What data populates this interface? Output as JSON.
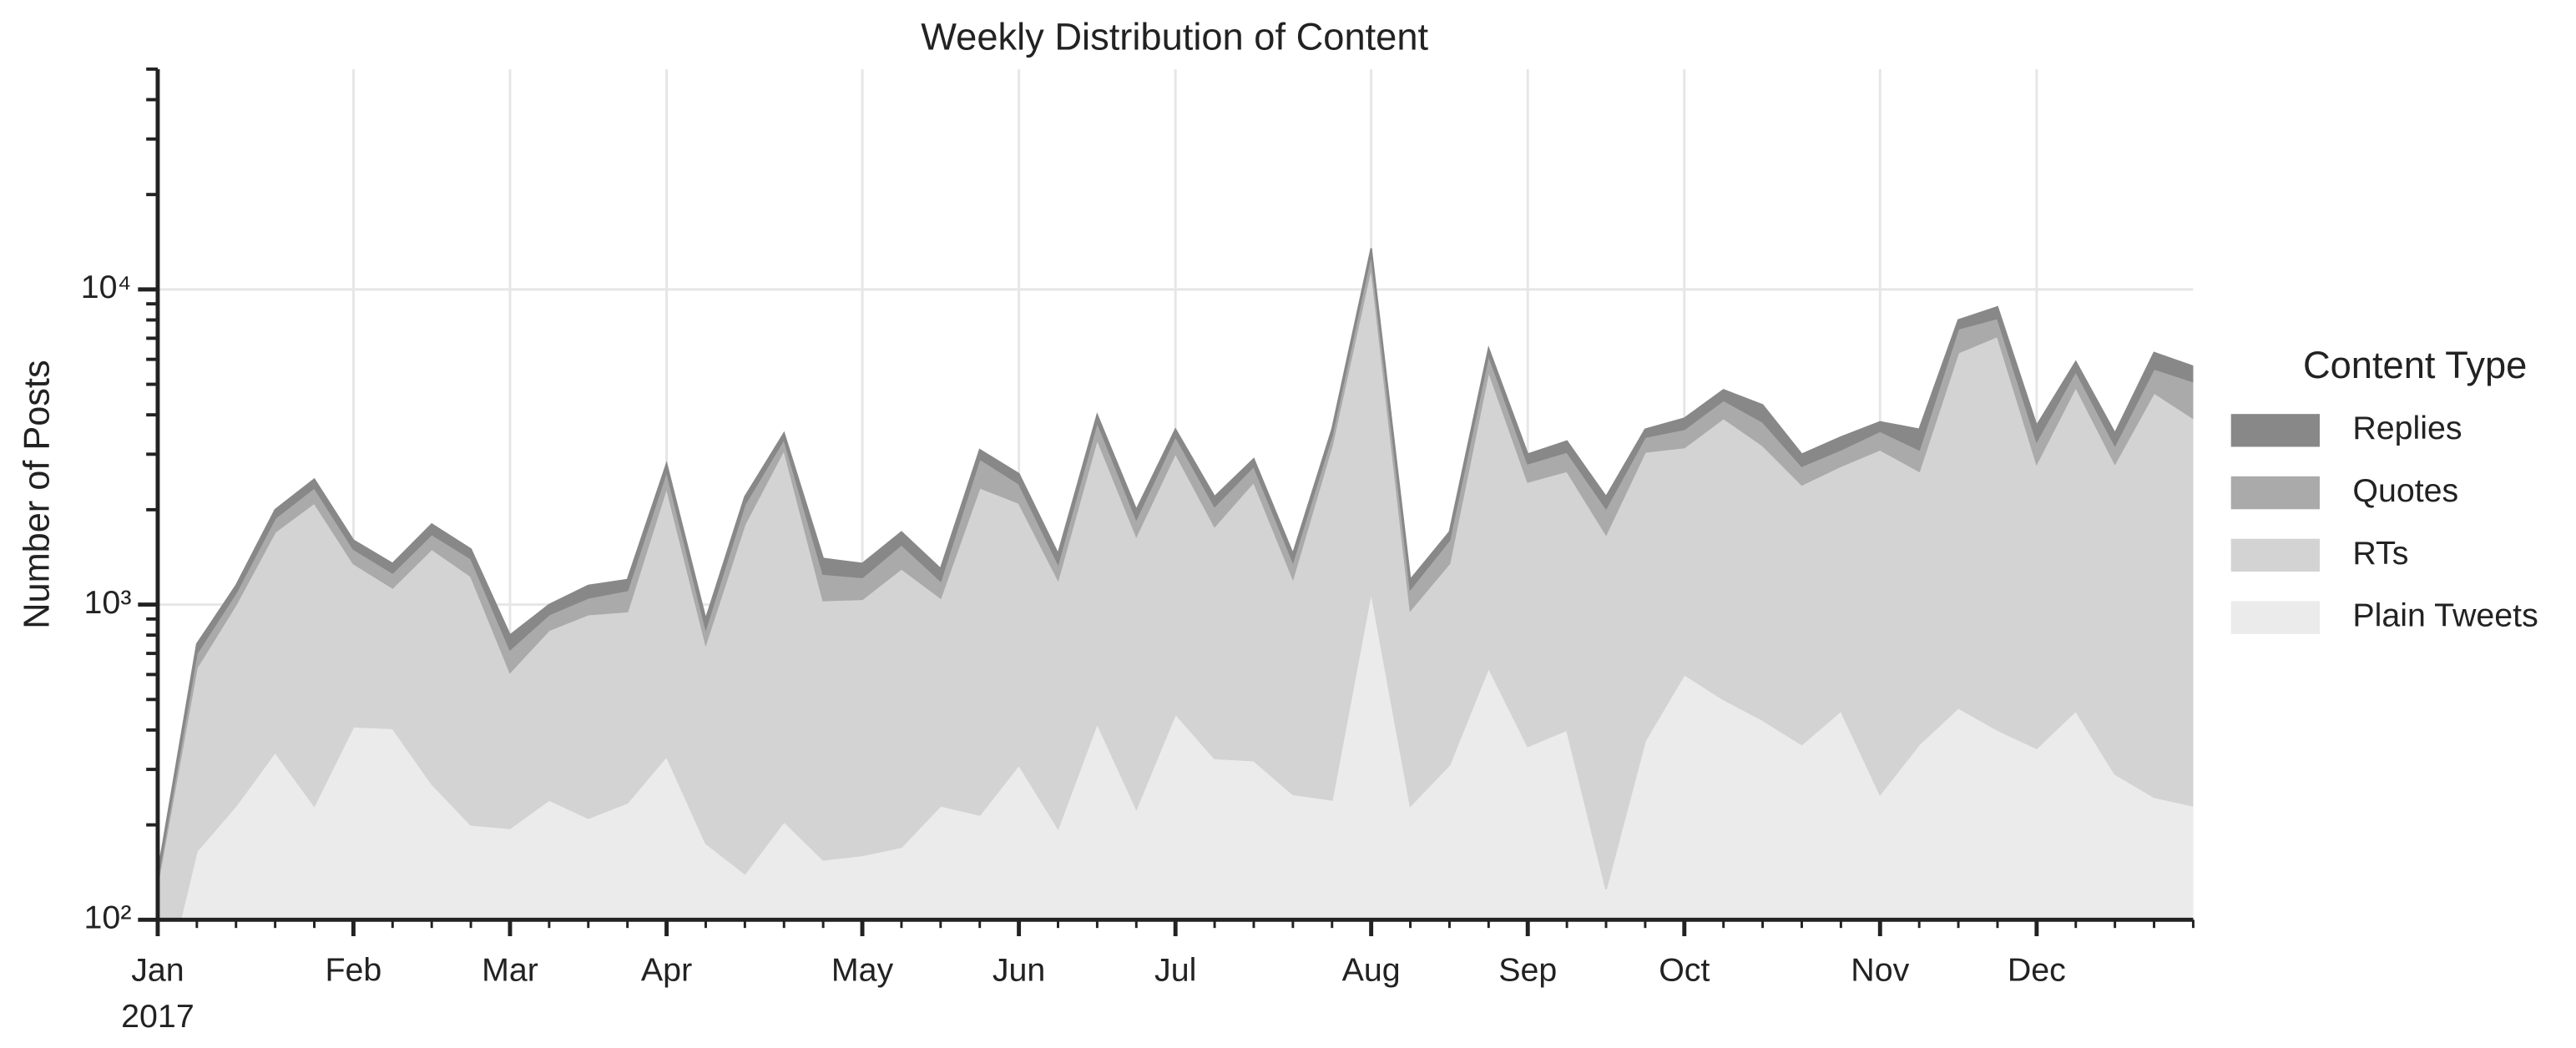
{
  "chart_data": {
    "type": "stacked_area",
    "title": "Weekly Distribution of Content",
    "ylabel": "Number of Posts",
    "legend_title": "Content Type",
    "legend": "right",
    "log_scale_y": true,
    "grid": true,
    "x": [
      0,
      1,
      2,
      3,
      4,
      5,
      6,
      7,
      8,
      9,
      10,
      11,
      12,
      13,
      14,
      15,
      16,
      17,
      18,
      19,
      20,
      21,
      22,
      23,
      24,
      25,
      26,
      27,
      28,
      29,
      30,
      31,
      32,
      33,
      34,
      35,
      36,
      37,
      38,
      39,
      40,
      41,
      42,
      43,
      44,
      45,
      46,
      47,
      48,
      49,
      50,
      51,
      52
    ],
    "xlim": [
      0,
      52
    ],
    "xticks": [
      {
        "value": 0,
        "label": "Jan"
      },
      {
        "value": 5,
        "label": "Feb"
      },
      {
        "value": 9,
        "label": "Mar"
      },
      {
        "value": 13,
        "label": "Apr"
      },
      {
        "value": 18,
        "label": "May"
      },
      {
        "value": 22,
        "label": "Jun"
      },
      {
        "value": 26,
        "label": "Jul"
      },
      {
        "value": 31,
        "label": "Aug"
      },
      {
        "value": 35,
        "label": "Sep"
      },
      {
        "value": 39,
        "label": "Oct"
      },
      {
        "value": 44,
        "label": "Nov"
      },
      {
        "value": 48,
        "label": "Dec"
      }
    ],
    "x_sublabel": "2017",
    "ylim": [
      100,
      50000
    ],
    "yticks": [
      {
        "value": 100,
        "label": "10²"
      },
      {
        "value": 1000,
        "label": "10³"
      },
      {
        "value": 10000,
        "label": "10⁴"
      }
    ],
    "yminorticks": [
      200,
      300,
      400,
      500,
      600,
      700,
      800,
      900,
      2000,
      3000,
      4000,
      5000,
      6000,
      7000,
      8000,
      9000,
      20000,
      30000,
      40000,
      50000
    ],
    "series": [
      {
        "name": "Plain Tweets",
        "color": "#ebebeb",
        "values": [
          50,
          165,
          230,
          340,
          230,
          410,
          405,
          270,
          200,
          195,
          240,
          210,
          235,
          330,
          175,
          140,
          205,
          155,
          160,
          170,
          230,
          215,
          310,
          195,
          420,
          225,
          450,
          325,
          320,
          250,
          240,
          1100,
          230,
          310,
          630,
          355,
          400,
          125,
          370,
          600,
          500,
          430,
          360,
          460,
          250,
          360,
          470,
          400,
          350,
          460,
          290,
          245,
          230
        ]
      },
      {
        "name": "RTs",
        "color": "#d3d3d3",
        "values": [
          80,
          465,
          770,
          1360,
          1870,
          940,
          725,
          1230,
          1030,
          415,
          590,
          720,
          715,
          2020,
          575,
          1660,
          2895,
          875,
          880,
          1130,
          820,
          2135,
          1790,
          1005,
          2930,
          1425,
          2570,
          1445,
          2130,
          960,
          2960,
          10700,
          730,
          1040,
          4870,
          2095,
          2250,
          1545,
          2680,
          2550,
          3400,
          2770,
          2040,
          2290,
          2850,
          2290,
          5830,
          6700,
          2450,
          4440,
          2510,
          4455,
          3670
        ]
      },
      {
        "name": "Quotes",
        "color": "#aaaaaa",
        "values": [
          5,
          70,
          90,
          180,
          250,
          150,
          130,
          170,
          170,
          110,
          100,
          120,
          160,
          300,
          90,
          280,
          250,
          220,
          180,
          250,
          140,
          550,
          320,
          150,
          450,
          220,
          400,
          280,
          300,
          160,
          250,
          1200,
          160,
          250,
          700,
          350,
          400,
          350,
          350,
          450,
          550,
          600,
          350,
          350,
          450,
          450,
          1200,
          1000,
          500,
          600,
          400,
          900,
          1200
        ]
      },
      {
        "name": "Replies",
        "color": "#888888",
        "values": [
          5,
          50,
          60,
          120,
          150,
          100,
          90,
          130,
          100,
          80,
          70,
          100,
          90,
          150,
          60,
          120,
          150,
          150,
          130,
          150,
          110,
          200,
          180,
          100,
          200,
          130,
          180,
          150,
          150,
          80,
          150,
          500,
          80,
          100,
          300,
          200,
          250,
          180,
          200,
          300,
          350,
          500,
          250,
          300,
          250,
          500,
          500,
          700,
          400,
          400,
          300,
          700,
          600
        ]
      }
    ]
  }
}
